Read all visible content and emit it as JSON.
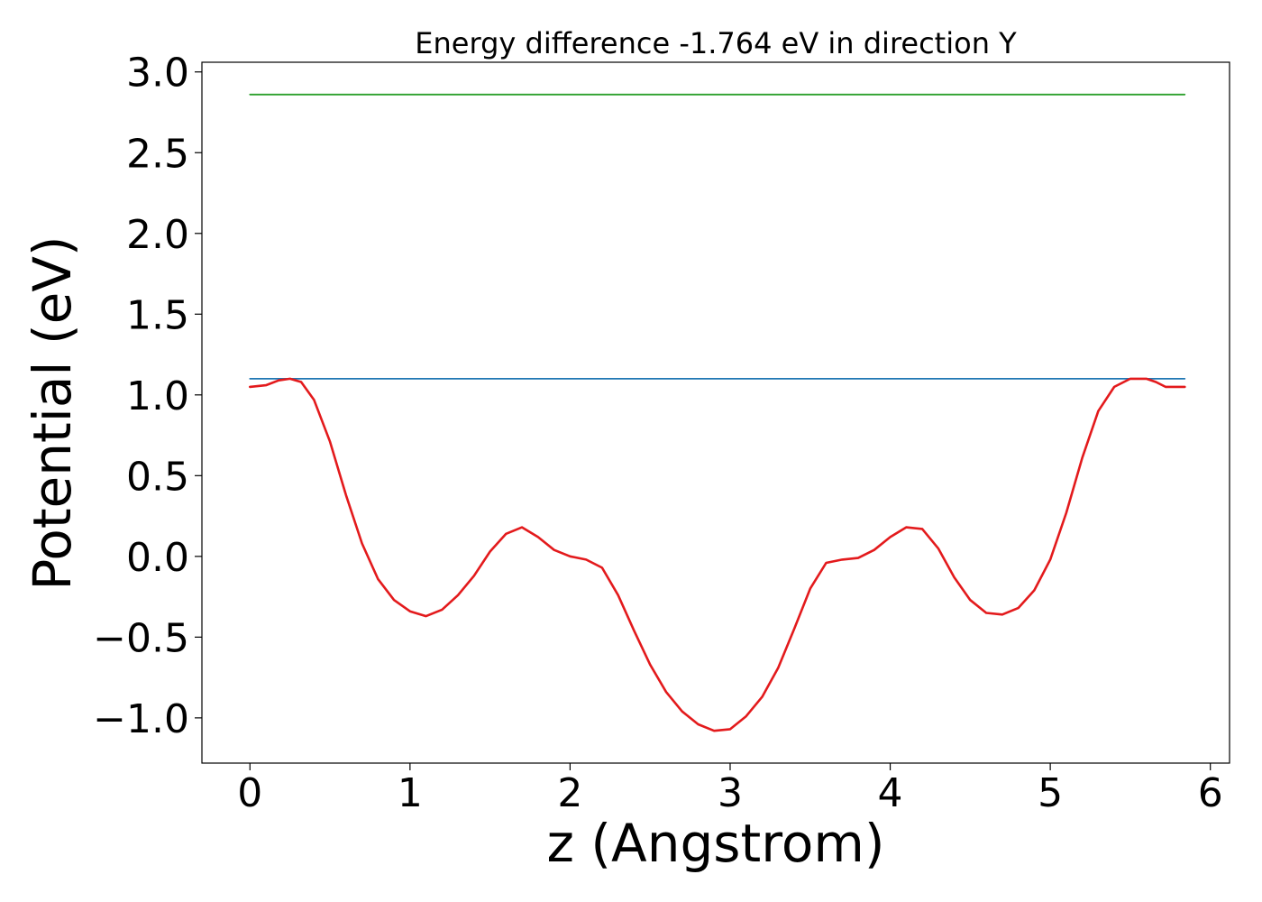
{
  "chart_data": {
    "type": "line",
    "title": "Energy difference -1.764 eV in direction Y",
    "xlabel": "z (Angstrom)",
    "ylabel": "Potential (eV)",
    "xlim": [
      -0.3,
      6.12
    ],
    "ylim": [
      -1.28,
      3.06
    ],
    "xticks": [
      0,
      1,
      2,
      3,
      4,
      5,
      6
    ],
    "xtick_labels": [
      "0",
      "1",
      "2",
      "3",
      "4",
      "5",
      "6"
    ],
    "yticks": [
      3.0,
      2.5,
      2.0,
      1.5,
      1.0,
      0.5,
      0.0,
      -0.5,
      -1.0
    ],
    "ytick_labels": [
      "3.0",
      "2.5",
      "2.0",
      "1.5",
      "1.0",
      "0.5",
      "0.0",
      "−0.5",
      "−1.0"
    ],
    "grid": false,
    "legend": "none",
    "series": [
      {
        "color": "#2ca02c",
        "x": [
          0,
          5.84
        ],
        "y": [
          2.86,
          2.86
        ]
      },
      {
        "color": "#1f77b4",
        "x": [
          0,
          5.84
        ],
        "y": [
          1.1,
          1.1
        ]
      },
      {
        "color": "#e31a1c",
        "x": [
          0,
          0.1,
          0.18,
          0.25,
          0.32,
          0.4,
          0.5,
          0.6,
          0.7,
          0.8,
          0.9,
          1.0,
          1.1,
          1.2,
          1.3,
          1.4,
          1.5,
          1.6,
          1.7,
          1.8,
          1.9,
          2.0,
          2.1,
          2.2,
          2.3,
          2.4,
          2.5,
          2.6,
          2.7,
          2.8,
          2.9,
          3.0,
          3.1,
          3.2,
          3.3,
          3.4,
          3.5,
          3.6,
          3.7,
          3.8,
          3.9,
          4.0,
          4.1,
          4.2,
          4.3,
          4.4,
          4.5,
          4.6,
          4.7,
          4.8,
          4.9,
          5.0,
          5.1,
          5.2,
          5.3,
          5.4,
          5.5,
          5.6,
          5.66,
          5.72,
          5.8,
          5.84
        ],
        "y": [
          1.05,
          1.06,
          1.09,
          1.1,
          1.08,
          0.97,
          0.71,
          0.38,
          0.08,
          -0.14,
          -0.27,
          -0.34,
          -0.37,
          -0.33,
          -0.24,
          -0.12,
          0.03,
          0.14,
          0.18,
          0.12,
          0.04,
          0.0,
          -0.02,
          -0.07,
          -0.24,
          -0.46,
          -0.67,
          -0.84,
          -0.96,
          -1.04,
          -1.08,
          -1.07,
          -0.99,
          -0.87,
          -0.69,
          -0.45,
          -0.2,
          -0.04,
          -0.02,
          -0.01,
          0.04,
          0.12,
          0.18,
          0.17,
          0.05,
          -0.13,
          -0.27,
          -0.35,
          -0.36,
          -0.32,
          -0.21,
          -0.02,
          0.27,
          0.61,
          0.9,
          1.05,
          1.1,
          1.1,
          1.08,
          1.05,
          1.05,
          1.05
        ]
      }
    ]
  }
}
